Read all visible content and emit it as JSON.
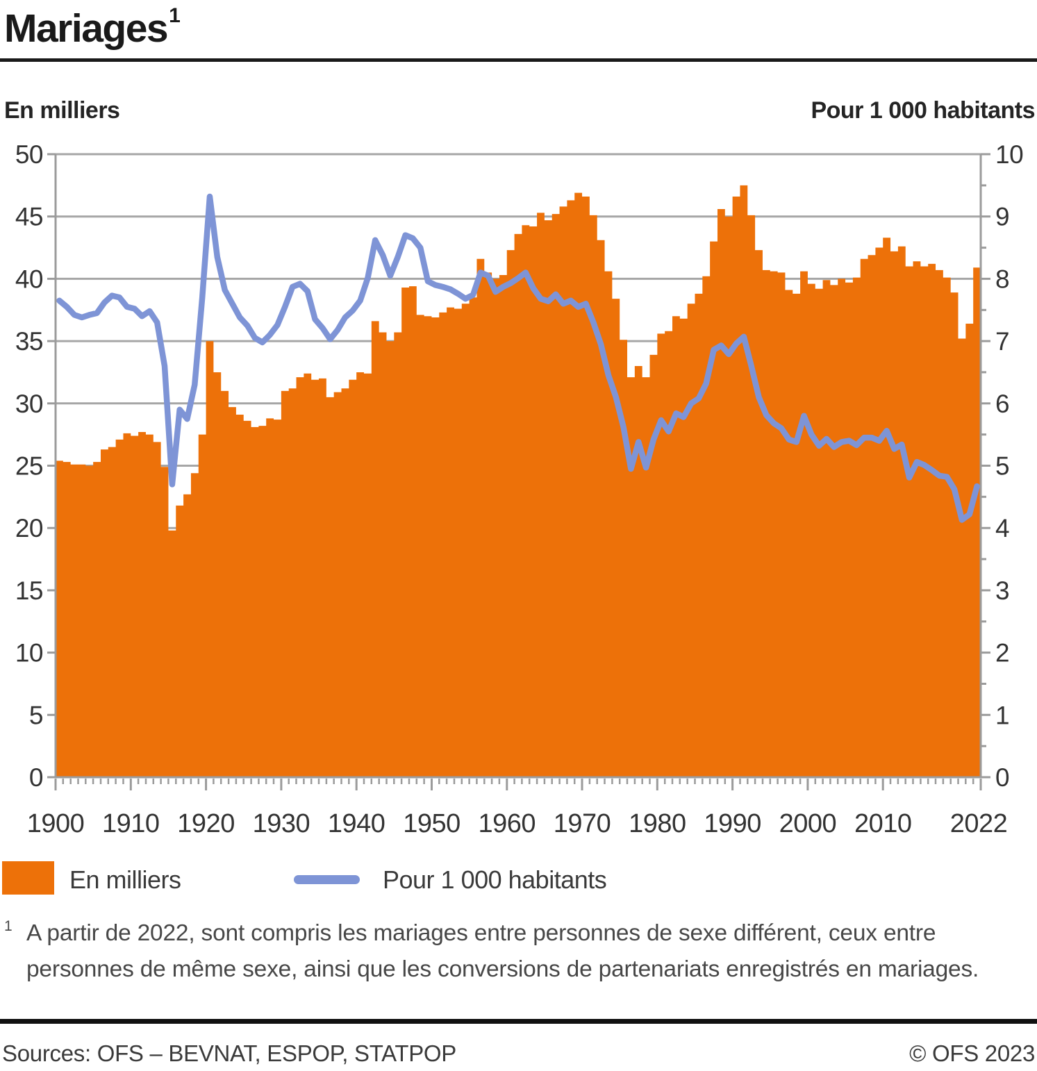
{
  "header": {
    "title": "Mariages",
    "title_footnote_marker": "1"
  },
  "axis_headers": {
    "left": "En milliers",
    "right": "Pour 1 000 habitants"
  },
  "legend": {
    "bar_label": "En milliers",
    "line_label": "Pour 1 000 habitants"
  },
  "footnote": {
    "marker": "1",
    "lines": [
      "A partir de 2022, sont compris les mariages entre personnes de sexe différent, ceux entre",
      "personnes de même sexe, ainsi que les conversions de partenariats enregistrés en mariages."
    ]
  },
  "footer": {
    "sources": "Sources: OFS – BEVNAT, ESPOP, STATPOP",
    "copyright": "© OFS 2023"
  },
  "colors": {
    "bar": "#ED7109",
    "line": "#7E94D6",
    "grid": "#A6A6A6",
    "axis": "#9B9B9B",
    "tick_text": "#333333"
  },
  "chart_data": {
    "type": "bar+line",
    "title": "Mariages",
    "years": [
      1900,
      1901,
      1902,
      1903,
      1904,
      1905,
      1906,
      1907,
      1908,
      1909,
      1910,
      1911,
      1912,
      1913,
      1914,
      1915,
      1916,
      1917,
      1918,
      1919,
      1920,
      1921,
      1922,
      1923,
      1924,
      1925,
      1926,
      1927,
      1928,
      1929,
      1930,
      1931,
      1932,
      1933,
      1934,
      1935,
      1936,
      1937,
      1938,
      1939,
      1940,
      1941,
      1942,
      1943,
      1944,
      1945,
      1946,
      1947,
      1948,
      1949,
      1950,
      1951,
      1952,
      1953,
      1954,
      1955,
      1956,
      1957,
      1958,
      1959,
      1960,
      1961,
      1962,
      1963,
      1964,
      1965,
      1966,
      1967,
      1968,
      1969,
      1970,
      1971,
      1972,
      1973,
      1974,
      1975,
      1976,
      1977,
      1978,
      1979,
      1980,
      1981,
      1982,
      1983,
      1984,
      1985,
      1986,
      1987,
      1988,
      1989,
      1990,
      1991,
      1992,
      1993,
      1994,
      1995,
      1996,
      1997,
      1998,
      1999,
      2000,
      2001,
      2002,
      2003,
      2004,
      2005,
      2006,
      2007,
      2008,
      2009,
      2010,
      2011,
      2012,
      2013,
      2014,
      2015,
      2016,
      2017,
      2018,
      2019,
      2020,
      2021,
      2022
    ],
    "series": [
      {
        "name": "En milliers",
        "type": "bar",
        "axis": "left",
        "color": "#ED7109",
        "values": [
          25.4,
          25.3,
          25.1,
          25.1,
          25.0,
          25.3,
          26.3,
          26.5,
          27.1,
          27.6,
          27.4,
          27.7,
          27.5,
          26.9,
          24.9,
          19.8,
          21.8,
          22.7,
          24.4,
          27.5,
          35.0,
          32.5,
          31.0,
          29.7,
          29.1,
          28.6,
          28.1,
          28.2,
          28.8,
          28.7,
          31.0,
          31.2,
          32.1,
          32.4,
          31.9,
          32.0,
          30.5,
          30.9,
          31.2,
          31.9,
          32.5,
          32.4,
          36.6,
          35.7,
          35.0,
          35.7,
          39.3,
          39.4,
          37.1,
          37.0,
          36.9,
          37.3,
          37.7,
          37.6,
          38.0,
          38.5,
          41.6,
          40.5,
          40.0,
          40.3,
          42.3,
          43.6,
          44.3,
          44.2,
          45.3,
          44.7,
          45.2,
          45.8,
          46.3,
          46.9,
          46.6,
          45.1,
          43.1,
          40.6,
          38.4,
          35.1,
          32.1,
          33.0,
          32.1,
          33.9,
          35.6,
          35.8,
          37.0,
          36.8,
          38.0,
          38.8,
          40.2,
          43.0,
          45.6,
          45.0,
          46.6,
          47.5,
          45.1,
          42.3,
          40.7,
          40.6,
          40.5,
          39.1,
          38.8,
          40.6,
          39.6,
          39.2,
          39.9,
          39.5,
          40.0,
          39.7,
          40.1,
          41.6,
          41.9,
          42.5,
          43.3,
          42.2,
          42.6,
          41.0,
          41.4,
          41.0,
          41.2,
          40.7,
          40.1,
          38.9,
          35.2,
          36.4,
          40.9
        ]
      },
      {
        "name": "Pour 1 000 habitants",
        "type": "line",
        "axis": "right",
        "color": "#7E94D6",
        "values": [
          7.65,
          7.55,
          7.42,
          7.38,
          7.42,
          7.45,
          7.62,
          7.73,
          7.7,
          7.55,
          7.52,
          7.4,
          7.48,
          7.3,
          6.6,
          4.7,
          5.9,
          5.75,
          6.3,
          7.7,
          9.32,
          8.35,
          7.82,
          7.6,
          7.38,
          7.25,
          7.05,
          6.98,
          7.1,
          7.26,
          7.55,
          7.87,
          7.92,
          7.8,
          7.35,
          7.21,
          7.03,
          7.18,
          7.38,
          7.49,
          7.65,
          8.01,
          8.62,
          8.38,
          8.05,
          8.35,
          8.7,
          8.65,
          8.5,
          7.96,
          7.9,
          7.87,
          7.83,
          7.76,
          7.68,
          7.74,
          8.1,
          8.05,
          7.79,
          7.87,
          7.93,
          8.01,
          8.1,
          7.85,
          7.68,
          7.64,
          7.75,
          7.6,
          7.65,
          7.55,
          7.6,
          7.3,
          6.95,
          6.45,
          6.1,
          5.62,
          4.95,
          5.38,
          4.97,
          5.42,
          5.73,
          5.55,
          5.84,
          5.78,
          6.0,
          6.08,
          6.32,
          6.86,
          6.93,
          6.79,
          6.96,
          7.07,
          6.6,
          6.1,
          5.81,
          5.68,
          5.6,
          5.42,
          5.38,
          5.8,
          5.5,
          5.32,
          5.43,
          5.3,
          5.38,
          5.4,
          5.33,
          5.45,
          5.45,
          5.4,
          5.56,
          5.27,
          5.34,
          4.81,
          5.06,
          5.01,
          4.93,
          4.84,
          4.82,
          4.62,
          4.13,
          4.22,
          4.67
        ]
      }
    ],
    "left_axis": {
      "title": "En milliers",
      "min": 0,
      "max": 50,
      "tick_step": 5
    },
    "right_axis": {
      "title": "Pour 1 000 habitants",
      "min": 0,
      "max": 10,
      "tick_step": 1,
      "minor_tick_step": 0.5
    },
    "x_axis": {
      "major_ticks": [
        1900,
        1910,
        1920,
        1930,
        1940,
        1950,
        1960,
        1970,
        1980,
        1990,
        2000,
        2010,
        2022
      ],
      "minor_tick_step": 1
    },
    "grid": "horizontal",
    "legend_position": "bottom-left"
  }
}
